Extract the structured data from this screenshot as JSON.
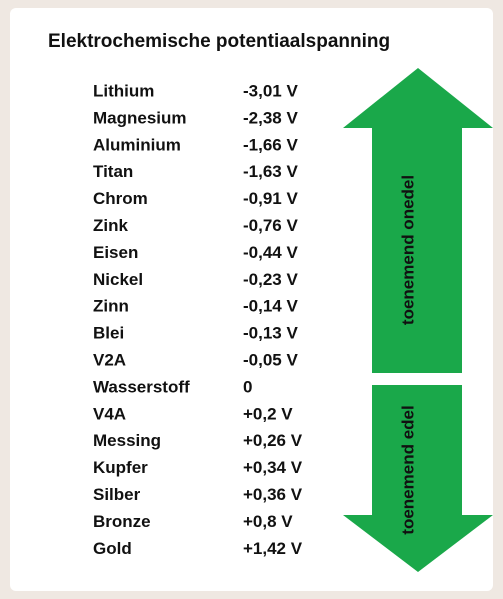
{
  "title": "Elektrochemische potentiaalspanning",
  "rows": [
    [
      "Lithium",
      "-3,01 V"
    ],
    [
      "Magnesium",
      "-2,38 V"
    ],
    [
      "Aluminium",
      "-1,66 V"
    ],
    [
      "Titan",
      "-1,63 V"
    ],
    [
      "Chrom",
      "-0,91 V"
    ],
    [
      "Zink",
      "-0,76 V"
    ],
    [
      "Eisen",
      "-0,44 V"
    ],
    [
      "Nickel",
      "-0,23 V"
    ],
    [
      "Zinn",
      "-0,14 V"
    ],
    [
      "Blei",
      "-0,13 V"
    ],
    [
      "V2A",
      "-0,05 V"
    ],
    [
      "Wasserstoff",
      "0"
    ],
    [
      "V4A",
      "+0,2 V"
    ],
    [
      "Messing",
      "+0,26 V"
    ],
    [
      "Kupfer",
      "+0,34 V"
    ],
    [
      "Silber",
      "+0,36 V"
    ],
    [
      "Bronze",
      "+0,8 V"
    ],
    [
      "Gold",
      "+1,42 V"
    ]
  ],
  "arrows": {
    "up": "toenemend onedel",
    "down": "toenemend edel"
  }
}
